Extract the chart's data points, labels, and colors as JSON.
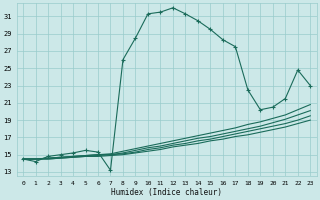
{
  "xlabel": "Humidex (Indice chaleur)",
  "bg_color": "#cce8e8",
  "grid_color": "#99cccc",
  "line_color": "#1a6b5a",
  "xlim": [
    -0.5,
    23.5
  ],
  "ylim": [
    12.5,
    32.5
  ],
  "xticks": [
    0,
    1,
    2,
    3,
    4,
    5,
    6,
    7,
    8,
    9,
    10,
    11,
    12,
    13,
    14,
    15,
    16,
    17,
    18,
    19,
    20,
    21,
    22,
    23
  ],
  "yticks": [
    13,
    15,
    17,
    19,
    21,
    23,
    25,
    27,
    29,
    31
  ],
  "main_y": [
    14.5,
    14.2,
    14.8,
    15.0,
    15.2,
    15.5,
    15.3,
    13.2,
    26.0,
    28.5,
    31.3,
    31.5,
    32.0,
    31.3,
    30.5,
    29.5,
    28.3,
    27.5,
    22.5,
    20.2,
    20.5,
    21.5,
    24.8,
    23.0
  ],
  "line2_y": [
    14.5,
    14.5,
    14.6,
    14.7,
    14.8,
    14.9,
    15.0,
    15.1,
    15.4,
    15.7,
    16.0,
    16.3,
    16.6,
    16.9,
    17.2,
    17.5,
    17.8,
    18.1,
    18.5,
    18.8,
    19.2,
    19.6,
    20.2,
    20.8
  ],
  "line3_y": [
    14.5,
    14.5,
    14.6,
    14.7,
    14.8,
    14.9,
    15.0,
    15.0,
    15.2,
    15.5,
    15.8,
    16.0,
    16.3,
    16.6,
    16.9,
    17.1,
    17.4,
    17.7,
    18.0,
    18.3,
    18.7,
    19.1,
    19.6,
    20.1
  ],
  "line4_y": [
    14.5,
    14.5,
    14.5,
    14.6,
    14.7,
    14.8,
    14.9,
    15.0,
    15.1,
    15.3,
    15.6,
    15.8,
    16.1,
    16.3,
    16.6,
    16.8,
    17.1,
    17.4,
    17.7,
    18.0,
    18.3,
    18.6,
    19.0,
    19.5
  ],
  "line5_y": [
    14.5,
    14.5,
    14.5,
    14.6,
    14.7,
    14.8,
    14.8,
    14.9,
    15.0,
    15.2,
    15.4,
    15.6,
    15.9,
    16.1,
    16.3,
    16.6,
    16.8,
    17.1,
    17.3,
    17.6,
    17.9,
    18.2,
    18.6,
    19.0
  ]
}
